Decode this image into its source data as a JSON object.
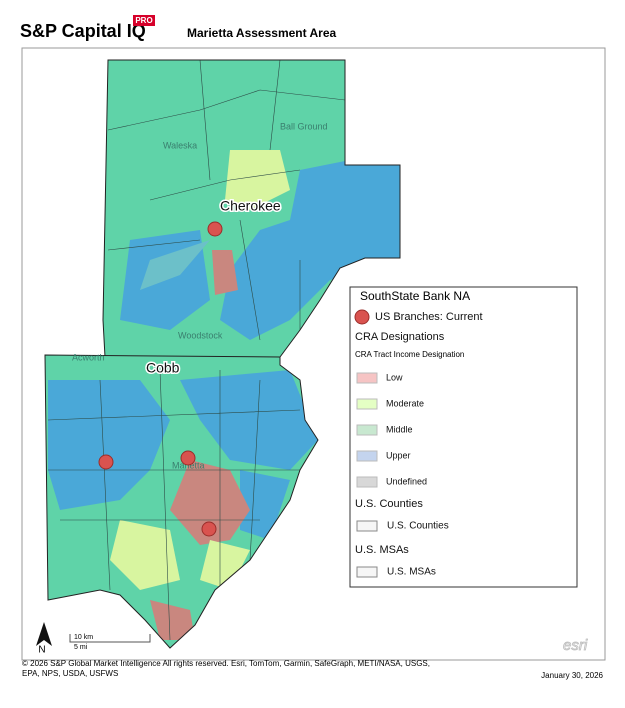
{
  "header": {
    "brand": "S&P Capital IQ",
    "badge": "PRO",
    "title": "Marietta Assessment Area"
  },
  "map": {
    "labels": {
      "ball_ground": "Ball Ground",
      "waleska": "Waleska",
      "cherokee": "Cherokee",
      "woodstock": "Woodstock",
      "acworth": "Acworth",
      "cobb": "Cobb",
      "marietta": "Marietta"
    },
    "scale": {
      "km": "10 km",
      "mi": "5 mi"
    },
    "north": "N",
    "watermark": "esri"
  },
  "legend": {
    "title": "SouthState Bank NA",
    "branches": "US Branches: Current",
    "cra_heading": "CRA Designations",
    "cra_subheading": "CRA Tract Income Designation",
    "income": [
      "Low",
      "Moderate",
      "Middle",
      "Upper",
      "Undefined"
    ],
    "counties_heading": "U.S. Counties",
    "counties_item": "U.S. Counties",
    "msas_heading": "U.S. MSAs",
    "msas_item": "U.S. MSAs"
  },
  "footer": {
    "copyright": [
      "© 2026 S&P Global Market Intelligence All rights reserved. Esri, TomTom, Garmin, SafeGraph, METI/NASA, USGS,",
      "EPA, NPS, USDA, USFWS"
    ],
    "date": "January 30, 2026"
  }
}
